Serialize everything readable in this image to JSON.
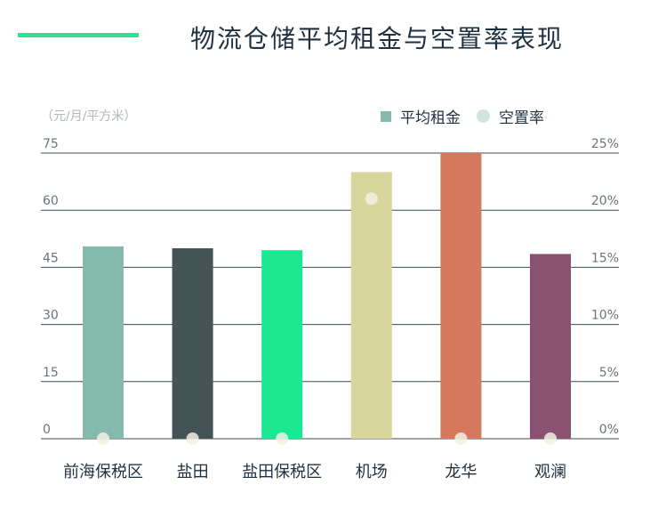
{
  "header": {
    "title": "物流仓储平均租金与空置率表现",
    "accent_color": "#2ee08f"
  },
  "chart_data": {
    "type": "bar",
    "title": "物流仓储平均租金与空置率表现",
    "unit_label": "（元/月/平方米）",
    "categories": [
      "前海保税区",
      "盐田",
      "盐田保税区",
      "机场",
      "龙华",
      "观澜"
    ],
    "series": [
      {
        "name": "平均租金",
        "kind": "bar",
        "axis": "left",
        "values": [
          50.5,
          50,
          49.5,
          70,
          75,
          48.5
        ],
        "colors": [
          "#85bbad",
          "#445353",
          "#1ce893",
          "#d8d69c",
          "#d5785c",
          "#8a5270"
        ],
        "legend_color": "#85bbad"
      },
      {
        "name": "空置率",
        "kind": "dot",
        "axis": "right",
        "values": [
          0,
          0,
          0,
          21,
          0,
          0
        ],
        "unit": "%",
        "color": "#f2f1e4",
        "legend_color": "#cfe6df"
      }
    ],
    "y_left": {
      "ticks": [
        "0",
        "15",
        "30",
        "45",
        "60",
        "75"
      ],
      "range": [
        0,
        75
      ]
    },
    "y_right": {
      "ticks": [
        "0%",
        "5%",
        "10%",
        "15%",
        "20%",
        "25%"
      ],
      "range": [
        0,
        25
      ]
    },
    "grid": true,
    "legend_position": "top-right"
  }
}
